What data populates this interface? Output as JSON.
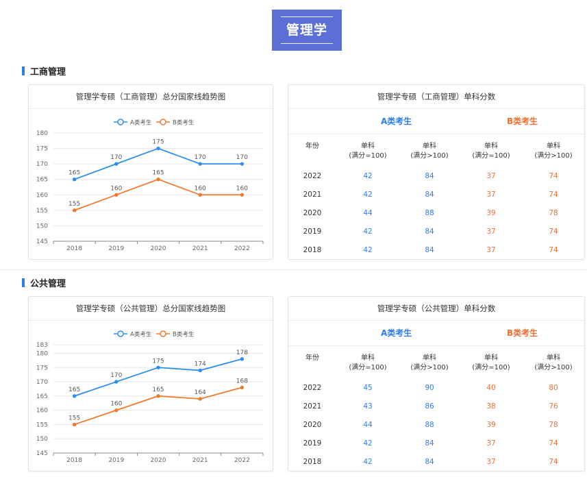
{
  "page": {
    "title": "管理学"
  },
  "sections": [
    {
      "heading": "工商管理",
      "chart_title": "管理学专硕（工商管理）总分国家线趋势图",
      "table_title": "管理学专硕（工商管理）单科分数",
      "group_a": "A类考生",
      "group_b": "B类考生",
      "year_header": "年份",
      "col_headers": [
        [
          "单科",
          "(满分=100)"
        ],
        [
          "单科",
          "(满分>100)"
        ],
        [
          "单科",
          "(满分=100)"
        ],
        [
          "单科",
          "(满分>100)"
        ]
      ],
      "rows": [
        [
          "2022",
          "42",
          "84",
          "37",
          "74"
        ],
        [
          "2021",
          "42",
          "84",
          "37",
          "74"
        ],
        [
          "2020",
          "44",
          "88",
          "39",
          "78"
        ],
        [
          "2019",
          "42",
          "84",
          "37",
          "74"
        ],
        [
          "2018",
          "42",
          "84",
          "37",
          "74"
        ]
      ]
    },
    {
      "heading": "公共管理",
      "chart_title": "管理学专硕（公共管理）总分国家线趋势图",
      "table_title": "管理学专硕（公共管理）单科分数",
      "group_a": "A类考生",
      "group_b": "B类考生",
      "year_header": "年份",
      "col_headers": [
        [
          "单科",
          "(满分=100)"
        ],
        [
          "单科",
          "(满分>100)"
        ],
        [
          "单科",
          "(满分=100)"
        ],
        [
          "单科",
          "(满分>100)"
        ]
      ],
      "rows": [
        [
          "2022",
          "45",
          "90",
          "40",
          "80"
        ],
        [
          "2021",
          "43",
          "86",
          "38",
          "76"
        ],
        [
          "2020",
          "44",
          "88",
          "39",
          "78"
        ],
        [
          "2019",
          "42",
          "84",
          "37",
          "74"
        ],
        [
          "2018",
          "42",
          "84",
          "37",
          "74"
        ]
      ]
    }
  ],
  "chart_data": [
    {
      "type": "line",
      "title": "管理学专硕（工商管理）总分国家线趋势图",
      "x": [
        "2018",
        "2019",
        "2020",
        "2021",
        "2022"
      ],
      "yticks": [
        145,
        150,
        155,
        160,
        165,
        170,
        175,
        180
      ],
      "ylim": [
        145,
        180
      ],
      "grid": true,
      "legend": "top-center",
      "series": [
        {
          "name": "A类考生",
          "color": "#2c8ef0",
          "values": [
            165,
            170,
            175,
            170,
            170
          ]
        },
        {
          "name": "B类考生",
          "color": "#f07a2c",
          "values": [
            155,
            160,
            165,
            160,
            160
          ]
        }
      ]
    },
    {
      "type": "line",
      "title": "管理学专硕（公共管理）总分国家线趋势图",
      "x": [
        "2018",
        "2019",
        "2020",
        "2021",
        "2022"
      ],
      "yticks": [
        145,
        150,
        155,
        160,
        165,
        170,
        175,
        180,
        183
      ],
      "ylim": [
        145,
        183
      ],
      "grid": true,
      "legend": "top-center",
      "series": [
        {
          "name": "A类考生",
          "color": "#2c8ef0",
          "values": [
            165,
            170,
            175,
            174,
            178
          ]
        },
        {
          "name": "B类考生",
          "color": "#f07a2c",
          "values": [
            155,
            160,
            165,
            164,
            168
          ]
        }
      ]
    }
  ]
}
